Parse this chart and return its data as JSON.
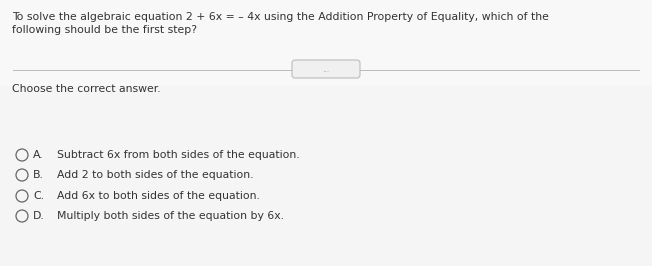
{
  "bg_color": "#f0f0f0",
  "content_bg": "#f5f5f5",
  "question_text_line1": "To solve the algebraic equation 2 + 6x = – 4x using the Addition Property of Equality, which of the",
  "question_text_line2": "following should be the first step?",
  "instruction": "Choose the correct answer.",
  "choices": [
    {
      "label": "A.",
      "text": "  Subtract 6x from both sides of the equation."
    },
    {
      "label": "B.",
      "text": "  Add 2 to both sides of the equation."
    },
    {
      "label": "C.",
      "text": "  Add 6x to both sides of the equation."
    },
    {
      "label": "D.",
      "text": "  Multiply both sides of the equation by 6x."
    }
  ],
  "divider_color": "#bbbbbb",
  "text_color": "#333333",
  "circle_edge_color": "#666666",
  "question_fontsize": 7.8,
  "instruction_fontsize": 7.8,
  "choice_fontsize": 7.8,
  "bubble_label": "...",
  "bubble_fontsize": 5.5,
  "bubble_text_color": "#999999"
}
